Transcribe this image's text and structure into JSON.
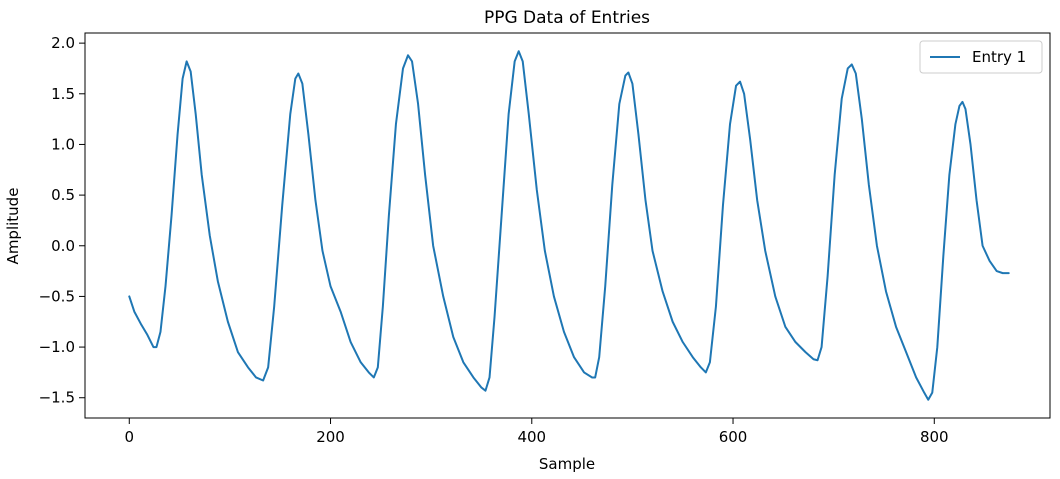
{
  "chart_data": {
    "type": "line",
    "title": "PPG Data of Entries",
    "xlabel": "Sample",
    "ylabel": "Amplitude",
    "xlim": [
      -44,
      915
    ],
    "ylim": [
      -1.7,
      2.1
    ],
    "xticks": [
      0,
      200,
      400,
      600,
      800
    ],
    "yticks": [
      -1.5,
      -1.0,
      -0.5,
      0.0,
      0.5,
      1.0,
      1.5,
      2.0
    ],
    "ytick_labels": [
      "−1.5",
      "−1.0",
      "−0.5",
      "0.0",
      "0.5",
      "1.0",
      "1.5",
      "2.0"
    ],
    "grid": false,
    "legend": {
      "position": "top-right"
    },
    "series": [
      {
        "name": "Entry 1",
        "color": "#1f77b4",
        "points": [
          [
            0,
            -0.5
          ],
          [
            5,
            -0.65
          ],
          [
            12,
            -0.78
          ],
          [
            18,
            -0.88
          ],
          [
            24,
            -1.0
          ],
          [
            27,
            -1.0
          ],
          [
            31,
            -0.85
          ],
          [
            36,
            -0.4
          ],
          [
            42,
            0.3
          ],
          [
            48,
            1.1
          ],
          [
            53,
            1.65
          ],
          [
            57,
            1.82
          ],
          [
            61,
            1.72
          ],
          [
            66,
            1.3
          ],
          [
            72,
            0.7
          ],
          [
            80,
            0.1
          ],
          [
            88,
            -0.35
          ],
          [
            98,
            -0.75
          ],
          [
            108,
            -1.05
          ],
          [
            118,
            -1.2
          ],
          [
            126,
            -1.3
          ],
          [
            133,
            -1.33
          ],
          [
            138,
            -1.2
          ],
          [
            144,
            -0.6
          ],
          [
            152,
            0.4
          ],
          [
            160,
            1.3
          ],
          [
            165,
            1.65
          ],
          [
            168,
            1.7
          ],
          [
            172,
            1.6
          ],
          [
            178,
            1.1
          ],
          [
            185,
            0.45
          ],
          [
            192,
            -0.05
          ],
          [
            200,
            -0.4
          ],
          [
            210,
            -0.65
          ],
          [
            220,
            -0.95
          ],
          [
            230,
            -1.15
          ],
          [
            238,
            -1.25
          ],
          [
            243,
            -1.3
          ],
          [
            247,
            -1.2
          ],
          [
            252,
            -0.6
          ],
          [
            258,
            0.3
          ],
          [
            265,
            1.2
          ],
          [
            272,
            1.75
          ],
          [
            277,
            1.88
          ],
          [
            281,
            1.82
          ],
          [
            287,
            1.4
          ],
          [
            294,
            0.7
          ],
          [
            302,
            0.0
          ],
          [
            312,
            -0.5
          ],
          [
            322,
            -0.9
          ],
          [
            332,
            -1.15
          ],
          [
            342,
            -1.3
          ],
          [
            350,
            -1.4
          ],
          [
            354,
            -1.43
          ],
          [
            358,
            -1.3
          ],
          [
            363,
            -0.7
          ],
          [
            370,
            0.3
          ],
          [
            377,
            1.3
          ],
          [
            383,
            1.82
          ],
          [
            387,
            1.92
          ],
          [
            391,
            1.82
          ],
          [
            397,
            1.3
          ],
          [
            405,
            0.55
          ],
          [
            413,
            -0.05
          ],
          [
            422,
            -0.5
          ],
          [
            432,
            -0.85
          ],
          [
            442,
            -1.1
          ],
          [
            452,
            -1.25
          ],
          [
            460,
            -1.3
          ],
          [
            463,
            -1.3
          ],
          [
            467,
            -1.1
          ],
          [
            473,
            -0.4
          ],
          [
            480,
            0.6
          ],
          [
            487,
            1.4
          ],
          [
            493,
            1.68
          ],
          [
            496,
            1.71
          ],
          [
            500,
            1.6
          ],
          [
            506,
            1.1
          ],
          [
            513,
            0.45
          ],
          [
            520,
            -0.05
          ],
          [
            530,
            -0.45
          ],
          [
            540,
            -0.75
          ],
          [
            550,
            -0.95
          ],
          [
            560,
            -1.1
          ],
          [
            568,
            -1.2
          ],
          [
            573,
            -1.25
          ],
          [
            577,
            -1.15
          ],
          [
            583,
            -0.6
          ],
          [
            590,
            0.4
          ],
          [
            597,
            1.2
          ],
          [
            603,
            1.58
          ],
          [
            607,
            1.62
          ],
          [
            611,
            1.5
          ],
          [
            617,
            1.05
          ],
          [
            624,
            0.45
          ],
          [
            632,
            -0.05
          ],
          [
            642,
            -0.5
          ],
          [
            652,
            -0.8
          ],
          [
            662,
            -0.95
          ],
          [
            672,
            -1.05
          ],
          [
            680,
            -1.12
          ],
          [
            684,
            -1.13
          ],
          [
            688,
            -1.0
          ],
          [
            694,
            -0.3
          ],
          [
            701,
            0.7
          ],
          [
            708,
            1.45
          ],
          [
            714,
            1.75
          ],
          [
            718,
            1.79
          ],
          [
            722,
            1.7
          ],
          [
            728,
            1.25
          ],
          [
            735,
            0.6
          ],
          [
            743,
            0.0
          ],
          [
            752,
            -0.45
          ],
          [
            762,
            -0.8
          ],
          [
            772,
            -1.05
          ],
          [
            782,
            -1.3
          ],
          [
            790,
            -1.45
          ],
          [
            794,
            -1.52
          ],
          [
            798,
            -1.45
          ],
          [
            803,
            -1.0
          ],
          [
            809,
            -0.1
          ],
          [
            815,
            0.7
          ],
          [
            821,
            1.2
          ],
          [
            825,
            1.38
          ],
          [
            828,
            1.42
          ],
          [
            831,
            1.35
          ],
          [
            836,
            1.0
          ],
          [
            842,
            0.45
          ],
          [
            848,
            0.0
          ],
          [
            855,
            -0.15
          ],
          [
            862,
            -0.25
          ],
          [
            868,
            -0.27
          ],
          [
            874,
            -0.27
          ]
        ]
      }
    ]
  }
}
